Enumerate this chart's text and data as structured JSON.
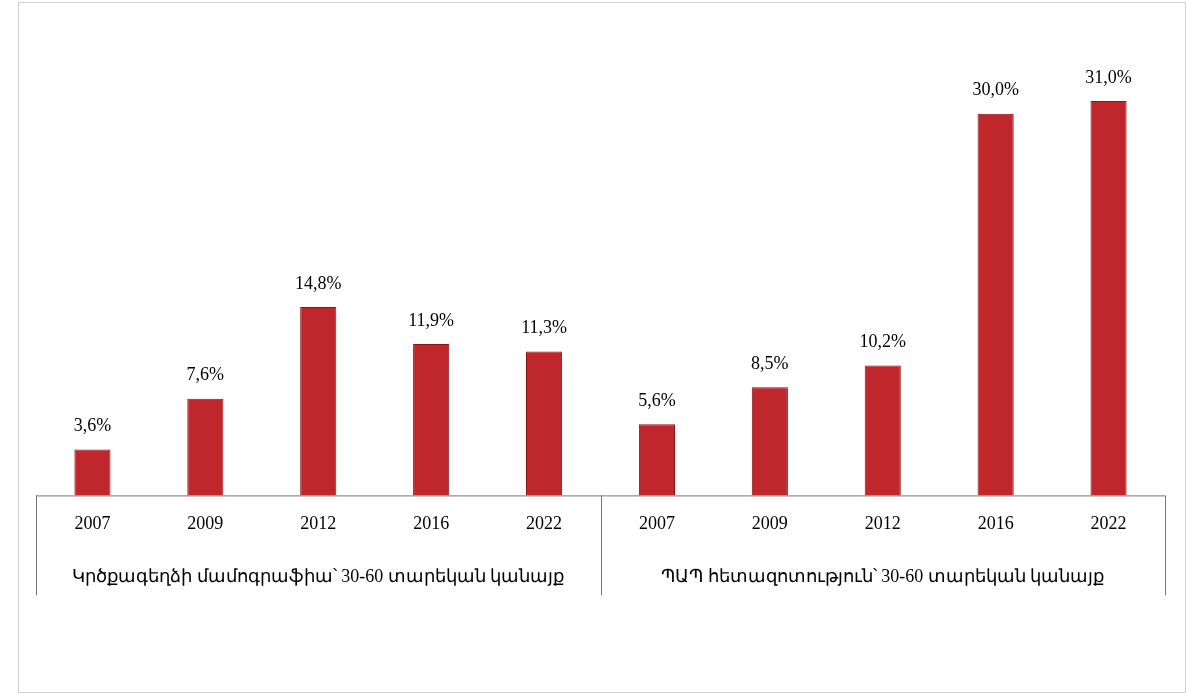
{
  "chart_data": {
    "type": "bar",
    "categories": [
      "2007",
      "2009",
      "2012",
      "2016",
      "2022",
      "2007",
      "2009",
      "2012",
      "2016",
      "2022"
    ],
    "values": [
      3.6,
      7.6,
      14.8,
      11.9,
      11.3,
      5.6,
      8.5,
      10.2,
      30.0,
      31.0
    ],
    "value_labels": [
      "3,6%",
      "7,6%",
      "14,8%",
      "11,9%",
      "11,3%",
      "5,6%",
      "8,5%",
      "10,2%",
      "30,0%",
      "31,0%"
    ],
    "color": "#c0272d",
    "annotations": [
      "Կրծքագեղձի մամոգրաֆիա՝ 30-60 տարեկան կանայք",
      "ՊԱՊ հետազոտություն՝ 30-60 տարեկան կանայք"
    ],
    "grid": false,
    "legend": false
  }
}
